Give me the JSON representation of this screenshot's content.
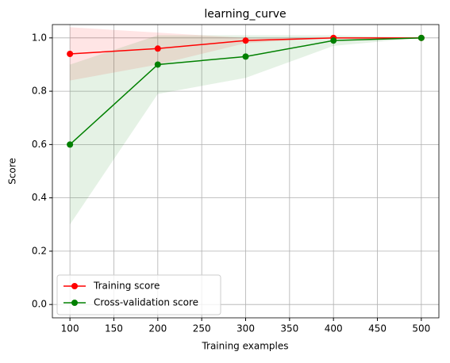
{
  "chart_data": {
    "type": "line",
    "title": "learning_curve",
    "x_label": "Training examples",
    "y_label": "Score",
    "x": [
      100,
      200,
      300,
      400,
      500
    ],
    "series": [
      {
        "name": "Training score",
        "color": "#ff0000",
        "values": [
          0.94,
          0.96,
          0.99,
          1.0,
          1.0
        ],
        "std": [
          0.1,
          0.06,
          0.01,
          0.0,
          0.0
        ]
      },
      {
        "name": "Cross-validation score",
        "color": "#008000",
        "values": [
          0.6,
          0.9,
          0.93,
          0.99,
          1.0
        ],
        "std": [
          0.3,
          0.11,
          0.08,
          0.02,
          0.0
        ]
      }
    ],
    "xlim": [
      80,
      520
    ],
    "ylim": [
      -0.05,
      1.05
    ],
    "xticks": [
      100,
      150,
      200,
      250,
      300,
      350,
      400,
      450,
      500
    ],
    "yticks": [
      {
        "value": 0,
        "label": "0.0"
      },
      {
        "value": 0.2,
        "label": "0.2"
      },
      {
        "value": 0.4,
        "label": "0.4"
      },
      {
        "value": 0.6,
        "label": "0.6"
      },
      {
        "value": 0.8,
        "label": "0.8"
      },
      {
        "value": 1,
        "label": "1.0"
      }
    ],
    "grid": true,
    "legend": "lower left"
  }
}
